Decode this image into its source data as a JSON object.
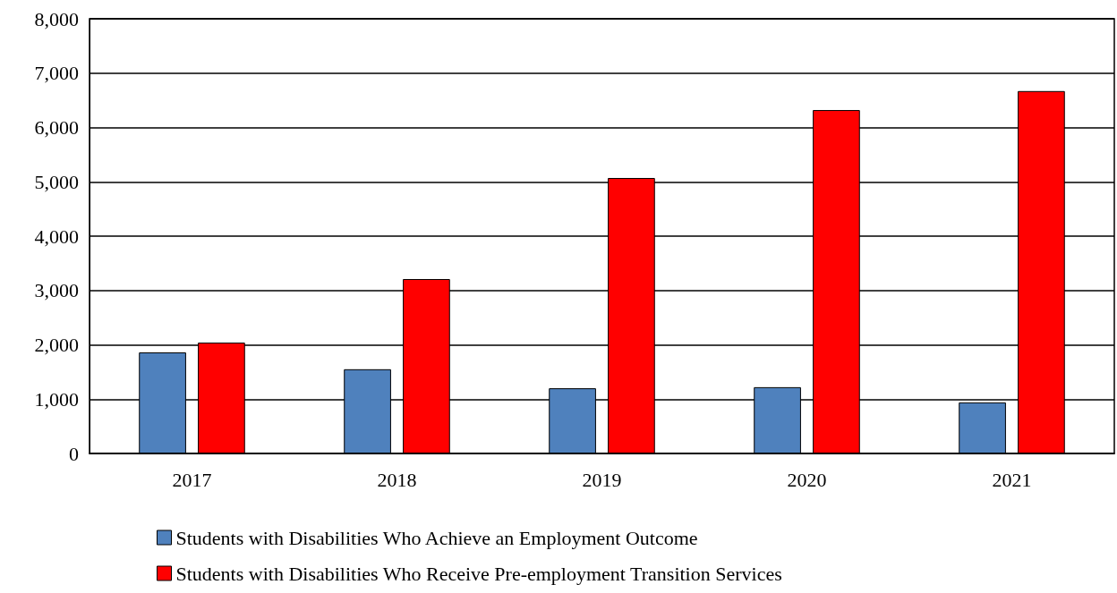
{
  "chart_data": {
    "type": "bar",
    "categories": [
      "2017",
      "2018",
      "2019",
      "2020",
      "2021"
    ],
    "series": [
      {
        "name": "Students with Disabilities Who Achieve an Employment Outcome",
        "color": "#4f81bd",
        "values": [
          1860,
          1550,
          1200,
          1220,
          940
        ]
      },
      {
        "name": "Students with Disabilities Who Receive Pre-employment Transition Services",
        "color": "#ff0000",
        "values": [
          2040,
          3210,
          5070,
          6320,
          6670
        ]
      }
    ],
    "ylim": [
      0,
      8000
    ],
    "yticks": [
      0,
      {
        "value": 1000,
        "label": "1,000"
      },
      {
        "value": 2000,
        "label": "2,000"
      },
      {
        "value": 3000,
        "label": "3,000"
      },
      {
        "value": 4000,
        "label": "4,000"
      },
      {
        "value": 5000,
        "label": "5,000"
      },
      {
        "value": 6000,
        "label": "6,000"
      },
      {
        "value": 7000,
        "label": "7,000"
      },
      {
        "value": 8000,
        "label": "8,000"
      }
    ],
    "grid": "y",
    "legend": "bottom"
  }
}
